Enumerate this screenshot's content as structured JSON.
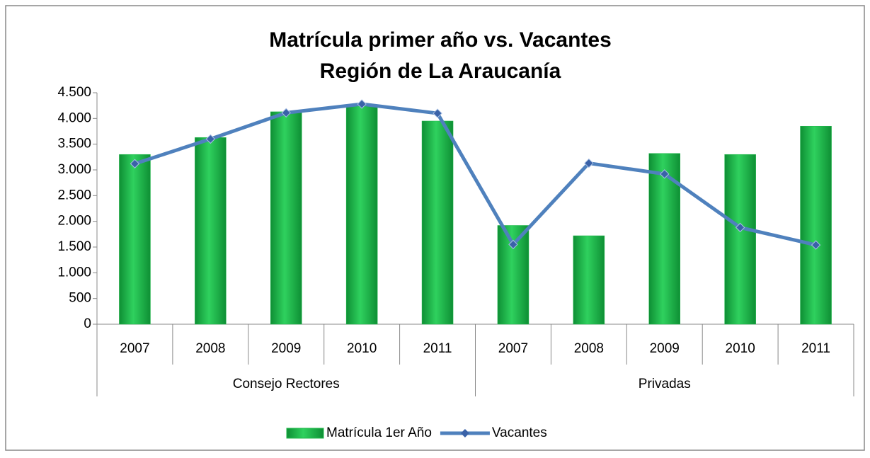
{
  "chart_data": {
    "type": "bar_line",
    "title": "Matrícula primer año vs. Vacantes",
    "subtitle": "Región de La Araucanía",
    "groups": [
      {
        "name": "Consejo Rectores",
        "categories": [
          "2007",
          "2008",
          "2009",
          "2010",
          "2011"
        ]
      },
      {
        "name": "Privadas",
        "categories": [
          "2007",
          "2008",
          "2009",
          "2010",
          "2011"
        ]
      }
    ],
    "series": [
      {
        "name": "Matrícula 1er Año",
        "type": "bar",
        "color": "#1fb84a",
        "values": [
          3300,
          3630,
          4130,
          4250,
          3950,
          1920,
          1720,
          3320,
          3300,
          3850
        ]
      },
      {
        "name": "Vacantes",
        "type": "line",
        "color": "#4f81bd",
        "values": [
          3120,
          3600,
          4110,
          4280,
          4100,
          1550,
          3130,
          2920,
          1880,
          1540
        ]
      }
    ],
    "ylim": [
      0,
      4500
    ],
    "yticks": [
      0,
      500,
      {
        "value": 1000,
        "label": "1.000"
      },
      {
        "value": 1500,
        "label": "1.500"
      },
      {
        "value": 2000,
        "label": "2.000"
      },
      {
        "value": 2500,
        "label": "2.500"
      },
      {
        "value": 3000,
        "label": "3.000"
      },
      {
        "value": 3500,
        "label": "3.500"
      },
      {
        "value": 4000,
        "label": "4.000"
      },
      {
        "value": 4500,
        "label": "4.500"
      }
    ],
    "grid": false,
    "legend": "bottom"
  }
}
